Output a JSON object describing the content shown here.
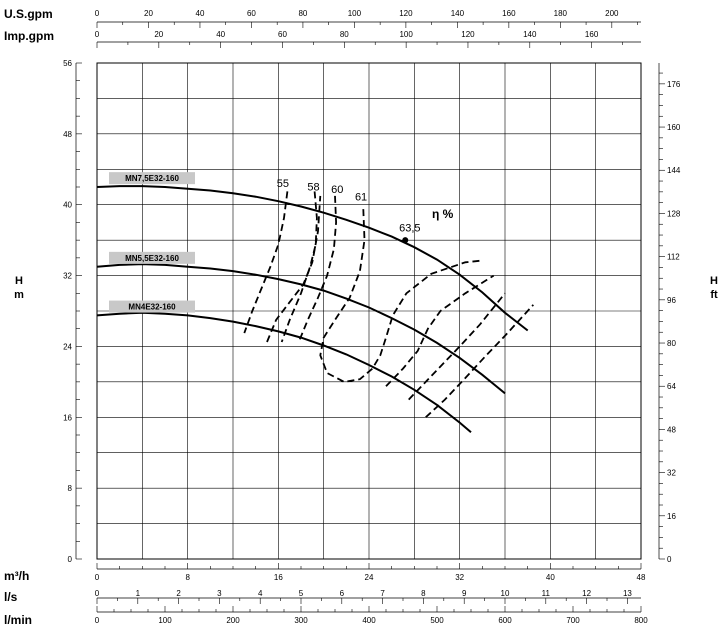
{
  "chart_data": {
    "type": "line",
    "title": "",
    "top_axes": [
      {
        "label": "U.S.gpm",
        "range": [
          0,
          210
        ],
        "ticks": [
          0,
          20,
          40,
          60,
          80,
          100,
          120,
          140,
          160,
          180,
          200
        ]
      },
      {
        "label": "Imp.gpm",
        "range": [
          0,
          176
        ],
        "ticks": [
          0,
          20,
          40,
          60,
          80,
          100,
          120,
          140,
          160
        ]
      }
    ],
    "bottom_axes": [
      {
        "label": "m³/h",
        "range": [
          0,
          48
        ],
        "ticks": [
          0,
          8,
          16,
          24,
          32,
          40,
          48
        ]
      },
      {
        "label": "l/s",
        "range": [
          0,
          13.33
        ],
        "ticks": [
          0,
          1,
          2,
          3,
          4,
          5,
          6,
          7,
          8,
          9,
          10,
          11,
          12,
          13
        ]
      },
      {
        "label": "l/min",
        "range": [
          0,
          800
        ],
        "ticks": [
          0,
          100,
          200,
          300,
          400,
          500,
          600,
          700,
          800
        ]
      }
    ],
    "y_left": {
      "label_top": "H",
      "label_bottom": "m",
      "range": [
        0,
        56
      ],
      "ticks": [
        0,
        8,
        16,
        24,
        32,
        40,
        48,
        56
      ]
    },
    "y_right": {
      "label_top": "H",
      "label_bottom": "ft",
      "range": [
        0,
        183.7
      ],
      "ticks": [
        0,
        16,
        32,
        48,
        64,
        80,
        96,
        112,
        128,
        144,
        160,
        176
      ]
    },
    "grid": true,
    "series": [
      {
        "name": "MN7,5E32-160",
        "x": [
          0,
          2,
          4,
          6,
          8,
          10,
          12,
          14,
          16,
          18,
          20,
          22,
          24,
          26,
          28,
          30,
          32,
          34,
          36,
          38
        ],
        "y": [
          42.0,
          42.1,
          42.1,
          42.0,
          41.8,
          41.6,
          41.3,
          40.9,
          40.4,
          39.8,
          39.1,
          38.3,
          37.4,
          36.4,
          35.2,
          33.8,
          32.1,
          30.1,
          27.8,
          25.8
        ]
      },
      {
        "name": "MN5,5E32-160",
        "x": [
          0,
          2,
          4,
          6,
          8,
          10,
          12,
          14,
          16,
          18,
          20,
          22,
          24,
          26,
          28,
          30,
          32,
          34,
          36
        ],
        "y": [
          33.0,
          33.2,
          33.3,
          33.2,
          33.0,
          32.8,
          32.5,
          32.1,
          31.6,
          31.0,
          30.3,
          29.4,
          28.4,
          27.2,
          25.9,
          24.4,
          22.7,
          20.8,
          18.7
        ]
      },
      {
        "name": "MN4E32-160",
        "x": [
          0,
          2,
          4,
          6,
          8,
          10,
          12,
          14,
          16,
          18,
          20,
          22,
          24,
          26,
          28,
          30,
          32,
          33
        ],
        "y": [
          27.5,
          27.7,
          27.8,
          27.7,
          27.5,
          27.2,
          26.8,
          26.3,
          25.7,
          25.0,
          24.1,
          23.1,
          21.9,
          20.6,
          19.1,
          17.4,
          15.4,
          14.3
        ]
      }
    ],
    "efficiency_label": "η %",
    "efficiency_curves": [
      {
        "label": "55",
        "x": [
          16.8,
          16.5,
          16.0,
          15.3,
          14.5,
          13.7,
          13.0
        ],
        "y": [
          41.5,
          38.5,
          35.5,
          33.0,
          30.5,
          28.0,
          25.5
        ]
      },
      {
        "label": "55",
        "x": [
          15.0,
          15.8,
          17.0,
          18.2,
          19.0,
          19.5,
          19.7
        ],
        "y": [
          24.5,
          27.0,
          29.0,
          31.0,
          33.5,
          37.0,
          41.0
        ]
      },
      {
        "label": "58",
        "x": [
          19.2,
          19.4,
          19.3,
          18.8,
          18.0,
          17.0,
          16.3
        ],
        "y": [
          41.5,
          38.5,
          35.5,
          33.0,
          30.0,
          27.0,
          24.5
        ]
      },
      {
        "label": "60",
        "x": [
          21.0,
          21.1,
          20.9,
          20.3,
          19.5,
          18.6,
          17.8
        ],
        "y": [
          41.0,
          38.0,
          35.0,
          32.0,
          29.5,
          27.0,
          24.5
        ]
      },
      {
        "label": "61",
        "x": [
          23.5,
          23.6,
          23.2,
          22.3,
          21.0,
          20.0,
          19.7,
          20.3,
          21.8,
          23.2,
          24.3,
          25.0,
          25.5,
          26.1,
          27.3,
          29.5,
          32.5,
          34.0
        ],
        "y": [
          39.5,
          36.0,
          32.5,
          29.5,
          27.0,
          25.0,
          23.0,
          21.0,
          20.0,
          20.3,
          21.5,
          23.0,
          25.0,
          27.5,
          30.0,
          32.2,
          33.5,
          33.7
        ]
      },
      {
        "label": "63,5",
        "x": [
          25.5,
          27.0,
          28.3,
          29.2,
          30.3,
          32.5,
          35.0
        ],
        "y": [
          19.5,
          21.5,
          23.5,
          26.0,
          28.0,
          30.0,
          32.0
        ]
      },
      {
        "label": "61",
        "x": [
          27.5,
          29.0,
          30.5,
          32.0,
          33.8,
          36.0
        ],
        "y": [
          18.0,
          20.0,
          22.0,
          24.0,
          26.5,
          30.0
        ]
      },
      {
        "label": "60",
        "x": [
          29.0,
          30.7,
          32.4,
          34.2,
          36.0,
          38.5
        ],
        "y": [
          16.0,
          18.0,
          20.3,
          22.8,
          25.2,
          28.7
        ]
      }
    ],
    "efficiency_labels": [
      {
        "text": "55",
        "x": 16.4,
        "y": 42.0
      },
      {
        "text": "58",
        "x": 19.1,
        "y": 41.6
      },
      {
        "text": "60",
        "x": 21.2,
        "y": 41.3
      },
      {
        "text": "61",
        "x": 23.3,
        "y": 40.5
      },
      {
        "text": "63,5",
        "x": 27.6,
        "y": 37.0
      }
    ],
    "marker_point": {
      "x": 27.2,
      "y": 36.0
    },
    "curve_labels": [
      {
        "text": "MN7,5E32-160",
        "series": 0
      },
      {
        "text": "MN5,5E32-160",
        "series": 1
      },
      {
        "text": "MN4E32-160",
        "series": 2
      }
    ]
  }
}
